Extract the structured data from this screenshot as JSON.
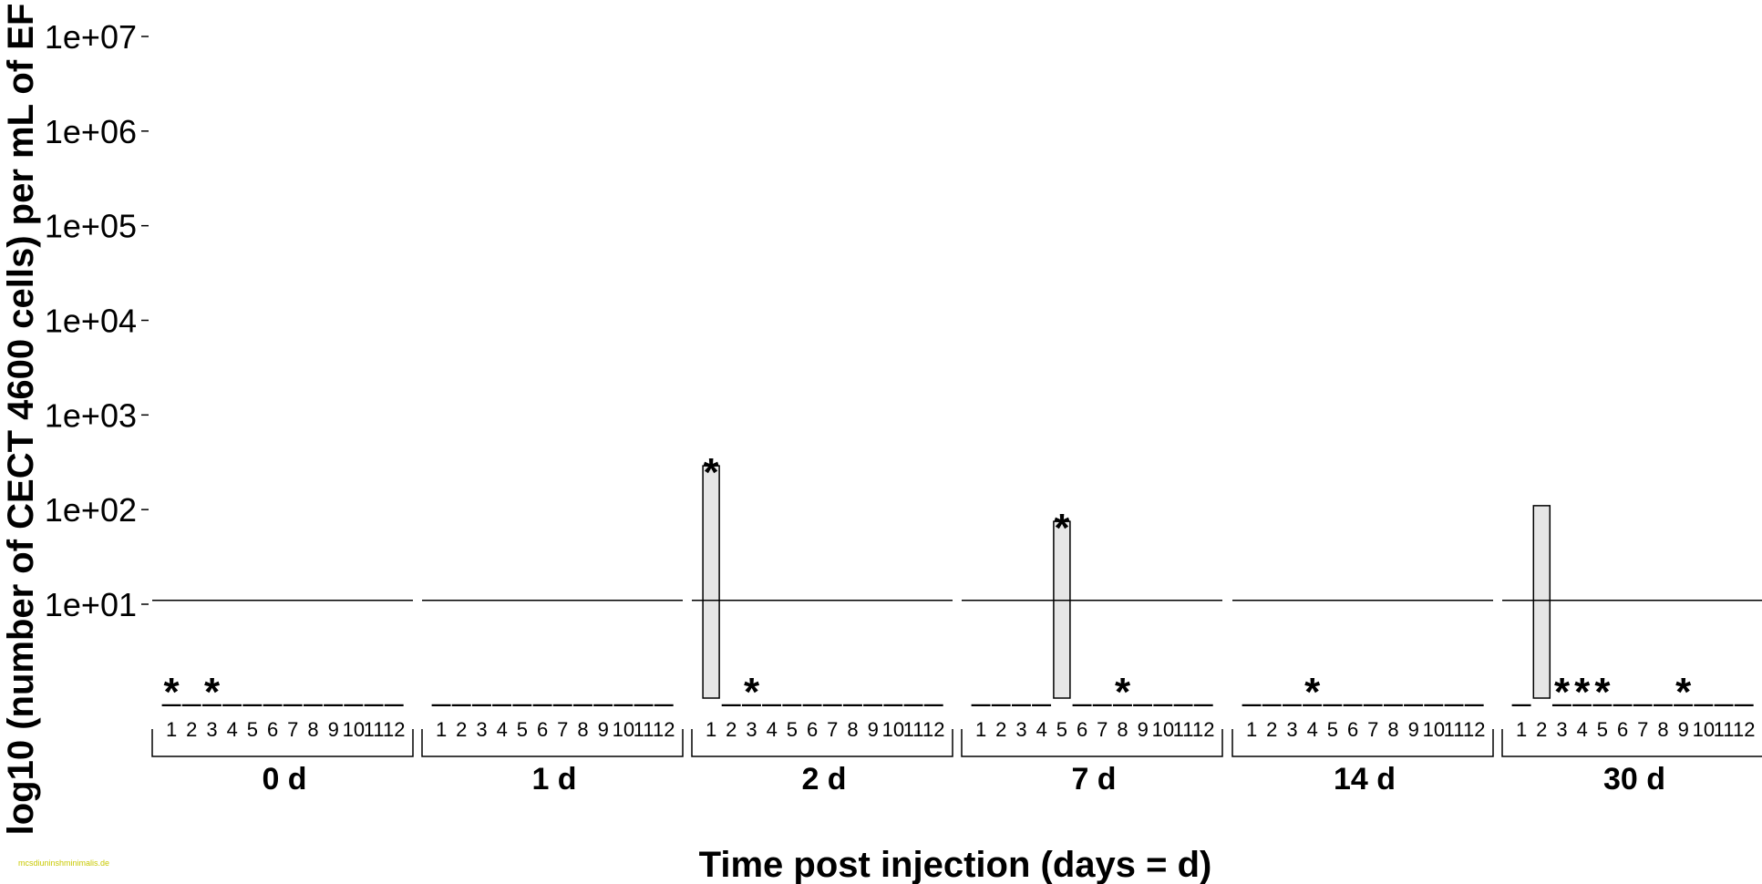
{
  "chart_data": {
    "type": "bar",
    "title": "",
    "xlabel": "Time post injection (days = d)",
    "ylabel": "log10 (number of CECT 4600 cells) per mL of EF",
    "y_scale": "log",
    "y_ticks": [
      "1e+01",
      "1e+02",
      "1e+03",
      "1e+04",
      "1e+05",
      "1e+06",
      "1e+07"
    ],
    "y_tick_values": [
      10,
      100,
      1000,
      10000,
      100000,
      1000000,
      10000000
    ],
    "ylim": [
      0.08,
      20000000
    ],
    "detection_limit": 11,
    "sample_labels": [
      "1",
      "2",
      "3",
      "4",
      "5",
      "6",
      "7",
      "8",
      "9",
      "10",
      "11",
      "12"
    ],
    "groups": [
      {
        "label": "0 d",
        "bars": [],
        "stars": [
          1,
          3
        ]
      },
      {
        "label": "1 d",
        "bars": [],
        "stars": []
      },
      {
        "label": "2 d",
        "bars": [
          {
            "sample": 1,
            "value": 290
          }
        ],
        "stars": [
          1,
          3
        ]
      },
      {
        "label": "7 d",
        "bars": [
          {
            "sample": 5,
            "value": 75
          }
        ],
        "stars": [
          5,
          8
        ]
      },
      {
        "label": "14 d",
        "bars": [],
        "stars": [
          4
        ]
      },
      {
        "label": "30 d",
        "bars": [
          {
            "sample": 2,
            "value": 110
          }
        ],
        "stars": [
          3,
          4,
          5,
          9
        ]
      }
    ],
    "zero_marker": "_",
    "star_marker": "*"
  },
  "watermark": "mcsdiuninshminimalis.de"
}
